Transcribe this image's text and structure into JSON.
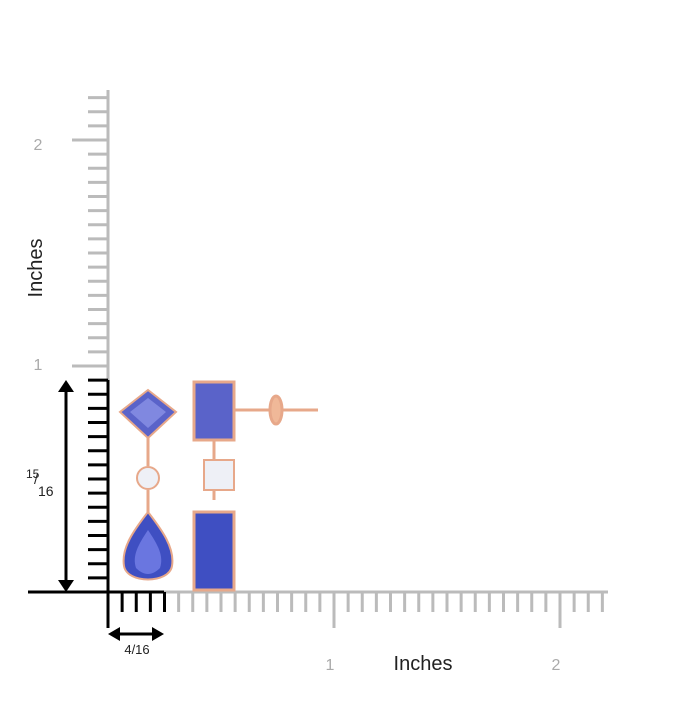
{
  "vertical_ruler": {
    "label": "Inches",
    "ticks": [
      "1",
      "2"
    ]
  },
  "horizontal_ruler": {
    "label": "Inches",
    "ticks": [
      "1",
      "2"
    ]
  },
  "height_label": {
    "numerator": "15",
    "denominator": "16"
  },
  "width_label": "4/16"
}
